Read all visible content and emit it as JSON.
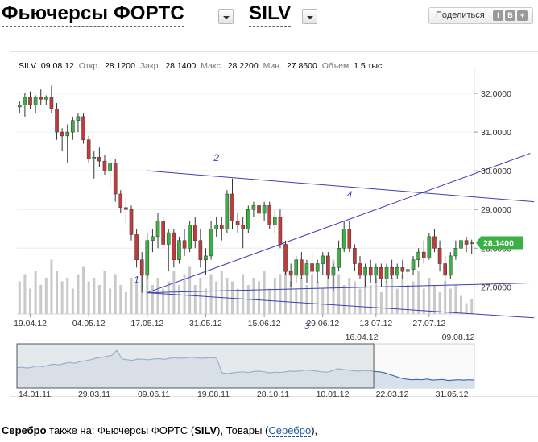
{
  "header": {
    "title_prefix": "Фьючерсы ФОРТС",
    "title_ticker": "SILV",
    "share_label": "Поделиться",
    "share_icons": [
      {
        "icon": "facebook-icon",
        "glyph": "f"
      },
      {
        "icon": "vkontakte-icon",
        "glyph": "В"
      },
      {
        "icon": "more-icon",
        "glyph": "+"
      }
    ]
  },
  "info": {
    "ticker": "SILV",
    "date": "09.08.12",
    "open_label": "Откр.",
    "open": "28.1200",
    "close_label": "Закр.",
    "close": "28.1400",
    "high_label": "Макс.",
    "high": "28.2200",
    "low_label": "Мин.",
    "low": "27.8600",
    "volume_label": "Объем",
    "volume": "1.5 тыс."
  },
  "colors": {
    "up": "#3bb043",
    "down": "#c03b3b",
    "volume": "#c9c9c9",
    "trendline": "#3a3fb2",
    "annotation": "#3a3fb2",
    "price_tag": "#3bb043",
    "nav_line": "#3d6fb0",
    "nav_fill": "#d7e1ec",
    "nav_window": "#d8dde3"
  },
  "chart_data": {
    "type": "candlestick",
    "y_range": [
      26.3,
      32.5
    ],
    "y_ticks": [
      "32.0000",
      "31.0000",
      "30.0000",
      "29.0000",
      "28.0000",
      "27.0000"
    ],
    "y_tick_values": [
      32,
      31,
      30,
      29,
      28,
      27
    ],
    "x_tick_labels": [
      "19.04.12",
      "04.05.12",
      "17.05.12",
      "31.05.12",
      "15.06.12",
      "29.06.12",
      "13.07.12",
      "27.07.12"
    ],
    "x_tick_index": [
      2,
      13,
      24,
      35,
      46,
      57,
      67,
      77
    ],
    "last_price_label": "28.1400",
    "last_price": 28.14,
    "date_range_labels": [
      "16.04.12",
      "09.08.12"
    ],
    "candles": [
      {
        "o": 31.65,
        "h": 31.8,
        "l": 31.5,
        "c": 31.7
      },
      {
        "o": 31.7,
        "h": 32.0,
        "l": 31.4,
        "c": 31.9
      },
      {
        "o": 31.9,
        "h": 32.05,
        "l": 31.6,
        "c": 31.7
      },
      {
        "o": 31.7,
        "h": 31.95,
        "l": 31.5,
        "c": 31.9
      },
      {
        "o": 31.9,
        "h": 32.1,
        "l": 31.7,
        "c": 31.85
      },
      {
        "o": 31.85,
        "h": 31.95,
        "l": 31.7,
        "c": 31.9
      },
      {
        "o": 31.9,
        "h": 32.2,
        "l": 31.5,
        "c": 31.6
      },
      {
        "o": 31.6,
        "h": 31.75,
        "l": 30.8,
        "c": 31.0
      },
      {
        "o": 31.0,
        "h": 31.1,
        "l": 30.5,
        "c": 30.9
      },
      {
        "o": 30.9,
        "h": 31.2,
        "l": 30.2,
        "c": 31.0
      },
      {
        "o": 31.0,
        "h": 31.4,
        "l": 30.8,
        "c": 31.3
      },
      {
        "o": 31.3,
        "h": 31.5,
        "l": 31.0,
        "c": 31.4
      },
      {
        "o": 31.4,
        "h": 31.5,
        "l": 30.7,
        "c": 30.8
      },
      {
        "o": 30.8,
        "h": 30.9,
        "l": 30.2,
        "c": 30.3
      },
      {
        "o": 30.3,
        "h": 30.5,
        "l": 29.8,
        "c": 30.35
      },
      {
        "o": 30.35,
        "h": 30.6,
        "l": 30.1,
        "c": 30.25
      },
      {
        "o": 30.25,
        "h": 30.4,
        "l": 29.9,
        "c": 30.0
      },
      {
        "o": 30.0,
        "h": 30.3,
        "l": 29.6,
        "c": 30.2
      },
      {
        "o": 30.2,
        "h": 30.3,
        "l": 29.2,
        "c": 29.4
      },
      {
        "o": 29.4,
        "h": 29.5,
        "l": 28.9,
        "c": 29.05
      },
      {
        "o": 29.05,
        "h": 29.3,
        "l": 28.6,
        "c": 29.0
      },
      {
        "o": 29.0,
        "h": 29.1,
        "l": 28.2,
        "c": 28.35
      },
      {
        "o": 28.35,
        "h": 28.5,
        "l": 27.5,
        "c": 27.7
      },
      {
        "o": 27.7,
        "h": 27.9,
        "l": 26.85,
        "c": 27.3
      },
      {
        "o": 27.3,
        "h": 28.4,
        "l": 27.2,
        "c": 28.2
      },
      {
        "o": 28.2,
        "h": 28.5,
        "l": 27.9,
        "c": 28.3
      },
      {
        "o": 28.3,
        "h": 28.9,
        "l": 28.0,
        "c": 28.7
      },
      {
        "o": 28.7,
        "h": 28.8,
        "l": 28.0,
        "c": 28.1
      },
      {
        "o": 28.1,
        "h": 28.5,
        "l": 27.4,
        "c": 28.4
      },
      {
        "o": 28.4,
        "h": 28.5,
        "l": 27.5,
        "c": 27.7
      },
      {
        "o": 27.7,
        "h": 28.3,
        "l": 27.6,
        "c": 28.2
      },
      {
        "o": 28.2,
        "h": 28.5,
        "l": 27.8,
        "c": 28.0
      },
      {
        "o": 28.0,
        "h": 28.7,
        "l": 27.9,
        "c": 28.6
      },
      {
        "o": 28.6,
        "h": 28.8,
        "l": 28.0,
        "c": 28.2
      },
      {
        "o": 28.2,
        "h": 28.5,
        "l": 27.5,
        "c": 27.7
      },
      {
        "o": 27.7,
        "h": 28.0,
        "l": 27.3,
        "c": 27.8
      },
      {
        "o": 27.8,
        "h": 28.7,
        "l": 27.7,
        "c": 28.5
      },
      {
        "o": 28.5,
        "h": 28.8,
        "l": 28.3,
        "c": 28.6
      },
      {
        "o": 28.6,
        "h": 28.8,
        "l": 28.2,
        "c": 28.5
      },
      {
        "o": 28.5,
        "h": 29.5,
        "l": 28.4,
        "c": 29.4
      },
      {
        "o": 29.4,
        "h": 29.8,
        "l": 28.5,
        "c": 28.7
      },
      {
        "o": 28.7,
        "h": 28.9,
        "l": 28.4,
        "c": 28.6
      },
      {
        "o": 28.6,
        "h": 28.8,
        "l": 28.0,
        "c": 28.5
      },
      {
        "o": 28.5,
        "h": 29.1,
        "l": 28.4,
        "c": 29.0
      },
      {
        "o": 29.0,
        "h": 29.2,
        "l": 28.8,
        "c": 29.1
      },
      {
        "o": 29.1,
        "h": 29.2,
        "l": 28.8,
        "c": 28.9
      },
      {
        "o": 28.9,
        "h": 29.2,
        "l": 28.7,
        "c": 29.1
      },
      {
        "o": 29.1,
        "h": 29.2,
        "l": 28.5,
        "c": 28.6
      },
      {
        "o": 28.6,
        "h": 29.0,
        "l": 28.4,
        "c": 28.8
      },
      {
        "o": 28.8,
        "h": 29.0,
        "l": 28.0,
        "c": 28.1
      },
      {
        "o": 28.1,
        "h": 28.2,
        "l": 27.3,
        "c": 27.4
      },
      {
        "o": 27.4,
        "h": 27.6,
        "l": 27.0,
        "c": 27.3
      },
      {
        "o": 27.3,
        "h": 27.8,
        "l": 27.1,
        "c": 27.7
      },
      {
        "o": 27.7,
        "h": 27.9,
        "l": 27.2,
        "c": 27.3
      },
      {
        "o": 27.3,
        "h": 27.7,
        "l": 27.1,
        "c": 27.6
      },
      {
        "o": 27.6,
        "h": 27.9,
        "l": 27.3,
        "c": 27.4
      },
      {
        "o": 27.4,
        "h": 27.7,
        "l": 27.1,
        "c": 27.6
      },
      {
        "o": 27.6,
        "h": 27.9,
        "l": 27.3,
        "c": 27.8
      },
      {
        "o": 27.8,
        "h": 27.9,
        "l": 27.2,
        "c": 27.3
      },
      {
        "o": 27.3,
        "h": 27.6,
        "l": 26.9,
        "c": 27.5
      },
      {
        "o": 27.5,
        "h": 28.2,
        "l": 27.4,
        "c": 28.0
      },
      {
        "o": 28.0,
        "h": 28.7,
        "l": 27.9,
        "c": 28.5
      },
      {
        "o": 28.5,
        "h": 28.7,
        "l": 27.9,
        "c": 28.0
      },
      {
        "o": 28.0,
        "h": 28.1,
        "l": 27.4,
        "c": 27.6
      },
      {
        "o": 27.6,
        "h": 27.8,
        "l": 27.2,
        "c": 27.3
      },
      {
        "o": 27.3,
        "h": 27.6,
        "l": 27.0,
        "c": 27.5
      },
      {
        "o": 27.5,
        "h": 27.7,
        "l": 27.1,
        "c": 27.3
      },
      {
        "o": 27.3,
        "h": 27.6,
        "l": 27.1,
        "c": 27.5
      },
      {
        "o": 27.5,
        "h": 27.6,
        "l": 27.0,
        "c": 27.2
      },
      {
        "o": 27.2,
        "h": 27.6,
        "l": 27.1,
        "c": 27.5
      },
      {
        "o": 27.5,
        "h": 27.7,
        "l": 27.2,
        "c": 27.3
      },
      {
        "o": 27.3,
        "h": 27.6,
        "l": 27.2,
        "c": 27.5
      },
      {
        "o": 27.5,
        "h": 27.7,
        "l": 27.2,
        "c": 27.4
      },
      {
        "o": 27.4,
        "h": 27.6,
        "l": 27.1,
        "c": 27.45
      },
      {
        "o": 27.45,
        "h": 27.8,
        "l": 27.3,
        "c": 27.7
      },
      {
        "o": 27.7,
        "h": 28.0,
        "l": 27.5,
        "c": 27.9
      },
      {
        "o": 27.9,
        "h": 28.2,
        "l": 27.6,
        "c": 27.75
      },
      {
        "o": 27.75,
        "h": 28.4,
        "l": 27.7,
        "c": 28.3
      },
      {
        "o": 28.3,
        "h": 28.5,
        "l": 27.9,
        "c": 28.0
      },
      {
        "o": 28.0,
        "h": 28.2,
        "l": 27.4,
        "c": 27.6
      },
      {
        "o": 27.6,
        "h": 27.8,
        "l": 27.1,
        "c": 27.3
      },
      {
        "o": 27.3,
        "h": 27.9,
        "l": 27.2,
        "c": 27.8
      },
      {
        "o": 27.8,
        "h": 28.2,
        "l": 27.7,
        "c": 28.0
      },
      {
        "o": 28.0,
        "h": 28.3,
        "l": 27.8,
        "c": 28.2
      },
      {
        "o": 28.2,
        "h": 28.3,
        "l": 27.9,
        "c": 28.1
      },
      {
        "o": 28.12,
        "h": 28.22,
        "l": 27.86,
        "c": 28.14
      }
    ],
    "volumes": [
      0.45,
      0.55,
      0.35,
      0.6,
      0.4,
      0.5,
      0.75,
      0.6,
      0.45,
      0.5,
      0.35,
      0.55,
      0.65,
      0.45,
      0.5,
      0.4,
      0.6,
      0.35,
      0.55,
      0.4,
      0.3,
      0.5,
      0.45,
      0.55,
      0.7,
      0.4,
      0.5,
      0.35,
      0.45,
      0.6,
      0.4,
      0.55,
      0.65,
      0.4,
      0.5,
      0.35,
      0.55,
      0.45,
      0.6,
      0.5,
      0.45,
      0.35,
      0.55,
      0.4,
      0.5,
      0.45,
      0.6,
      0.35,
      0.5,
      0.55,
      0.65,
      0.45,
      0.35,
      0.5,
      0.4,
      0.55,
      0.45,
      0.35,
      0.6,
      0.75,
      0.55,
      0.4,
      0.5,
      0.45,
      0.35,
      0.55,
      0.4,
      0.5,
      0.3,
      0.45,
      0.5,
      0.35,
      0.55,
      0.4,
      0.45,
      0.6,
      0.35,
      0.5,
      0.4,
      0.3,
      0.45,
      0.35,
      0.4,
      0.25,
      0.15,
      0.2
    ],
    "trendlines": [
      {
        "from": [
          24,
          26.85
        ],
        "to": [
          96,
          27.1
        ]
      },
      {
        "from": [
          24,
          26.85
        ],
        "to": [
          96,
          30.45
        ]
      },
      {
        "from": [
          24,
          30.0
        ],
        "to": [
          99,
          29.2
        ]
      },
      {
        "from": [
          24,
          26.85
        ],
        "to": [
          99,
          26.2
        ]
      }
    ],
    "annotations": [
      {
        "label": "1",
        "index": 22,
        "value": 27.1
      },
      {
        "label": "2",
        "index": 37,
        "value": 30.25
      },
      {
        "label": "3",
        "index": 54,
        "value": 25.9
      },
      {
        "label": "4",
        "index": 62,
        "value": 29.3
      }
    ],
    "navigator": {
      "x_tick_labels": [
        "14.01.11",
        "29.03.11",
        "09.06.11",
        "19.08.11",
        "28.10.11",
        "10.01.12",
        "22.03.12",
        "31.05.12"
      ],
      "series": [
        0.45,
        0.46,
        0.44,
        0.47,
        0.5,
        0.48,
        0.52,
        0.55,
        0.53,
        0.57,
        0.6,
        0.58,
        0.62,
        0.65,
        0.68,
        0.72,
        0.75,
        0.78,
        0.8,
        0.95,
        0.7,
        0.68,
        0.66,
        0.7,
        0.69,
        0.68,
        0.7,
        0.71,
        0.69,
        0.72,
        0.74,
        0.72,
        0.73,
        0.75,
        0.74,
        0.72,
        0.73,
        0.74,
        0.72,
        0.3,
        0.28,
        0.3,
        0.32,
        0.33,
        0.31,
        0.34,
        0.35,
        0.33,
        0.3,
        0.32,
        0.31,
        0.33,
        0.35,
        0.34,
        0.36,
        0.38,
        0.37,
        0.35,
        0.33,
        0.32,
        0.36,
        0.42,
        0.4,
        0.38,
        0.36,
        0.35,
        0.37,
        0.36,
        0.34,
        0.33,
        0.3,
        0.25,
        0.2,
        0.15,
        0.12,
        0.1,
        0.11,
        0.1,
        0.12,
        0.09,
        0.1,
        0.11,
        0.08,
        0.09,
        0.1,
        0.09,
        0.1,
        0.09
      ],
      "window_start": 0.0,
      "window_end": 0.78
    }
  },
  "footer": {
    "bold": "Серебро",
    "text1": " также на: Фьючерсы ФОРТС (",
    "ticker": "SILV",
    "text2": "), Товары (",
    "link": "Серебро",
    "text3": "),"
  }
}
